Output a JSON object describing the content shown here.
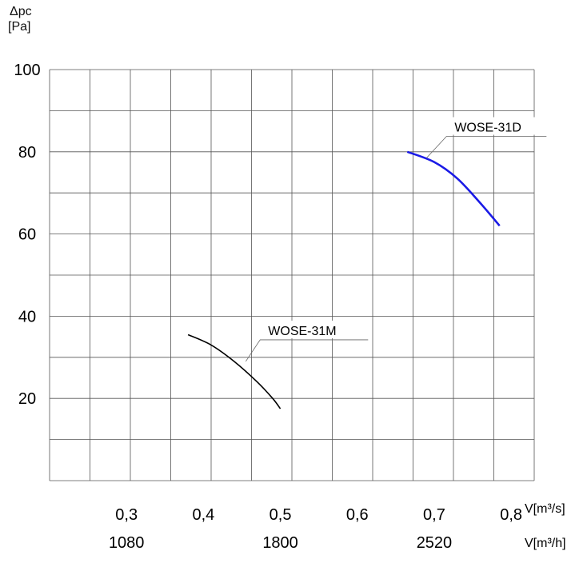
{
  "chart_data": {
    "type": "line",
    "y_axis": {
      "label_line1": "Δpc",
      "label_line2": "[Pa]",
      "ylim": [
        0,
        100
      ],
      "tick_labels": [
        "100",
        "80",
        "60",
        "40",
        "20"
      ]
    },
    "x_axis_primary": {
      "unit": "V[m³/s]",
      "xlim": [
        0.2,
        0.83
      ],
      "tick_labels": [
        "0,3",
        "0,4",
        "0,5",
        "0,6",
        "0,7",
        "0,8"
      ]
    },
    "x_axis_secondary": {
      "unit": "V[m³/h]",
      "tick_labels": [
        "1080",
        "1800",
        "2520"
      ]
    },
    "grid": true,
    "series": [
      {
        "name": "WOSE-31M",
        "color": "#000000",
        "x": [
          0.38,
          0.41,
          0.44,
          0.47,
          0.49,
          0.5
        ],
        "y": [
          35.5,
          33,
          29,
          24,
          20,
          17.5
        ]
      },
      {
        "name": "WOSE-31D",
        "color": "#1a1ae6",
        "x": [
          0.665,
          0.7,
          0.73,
          0.76,
          0.785
        ],
        "y": [
          80,
          77.5,
          73.5,
          67.5,
          62
        ]
      }
    ]
  }
}
